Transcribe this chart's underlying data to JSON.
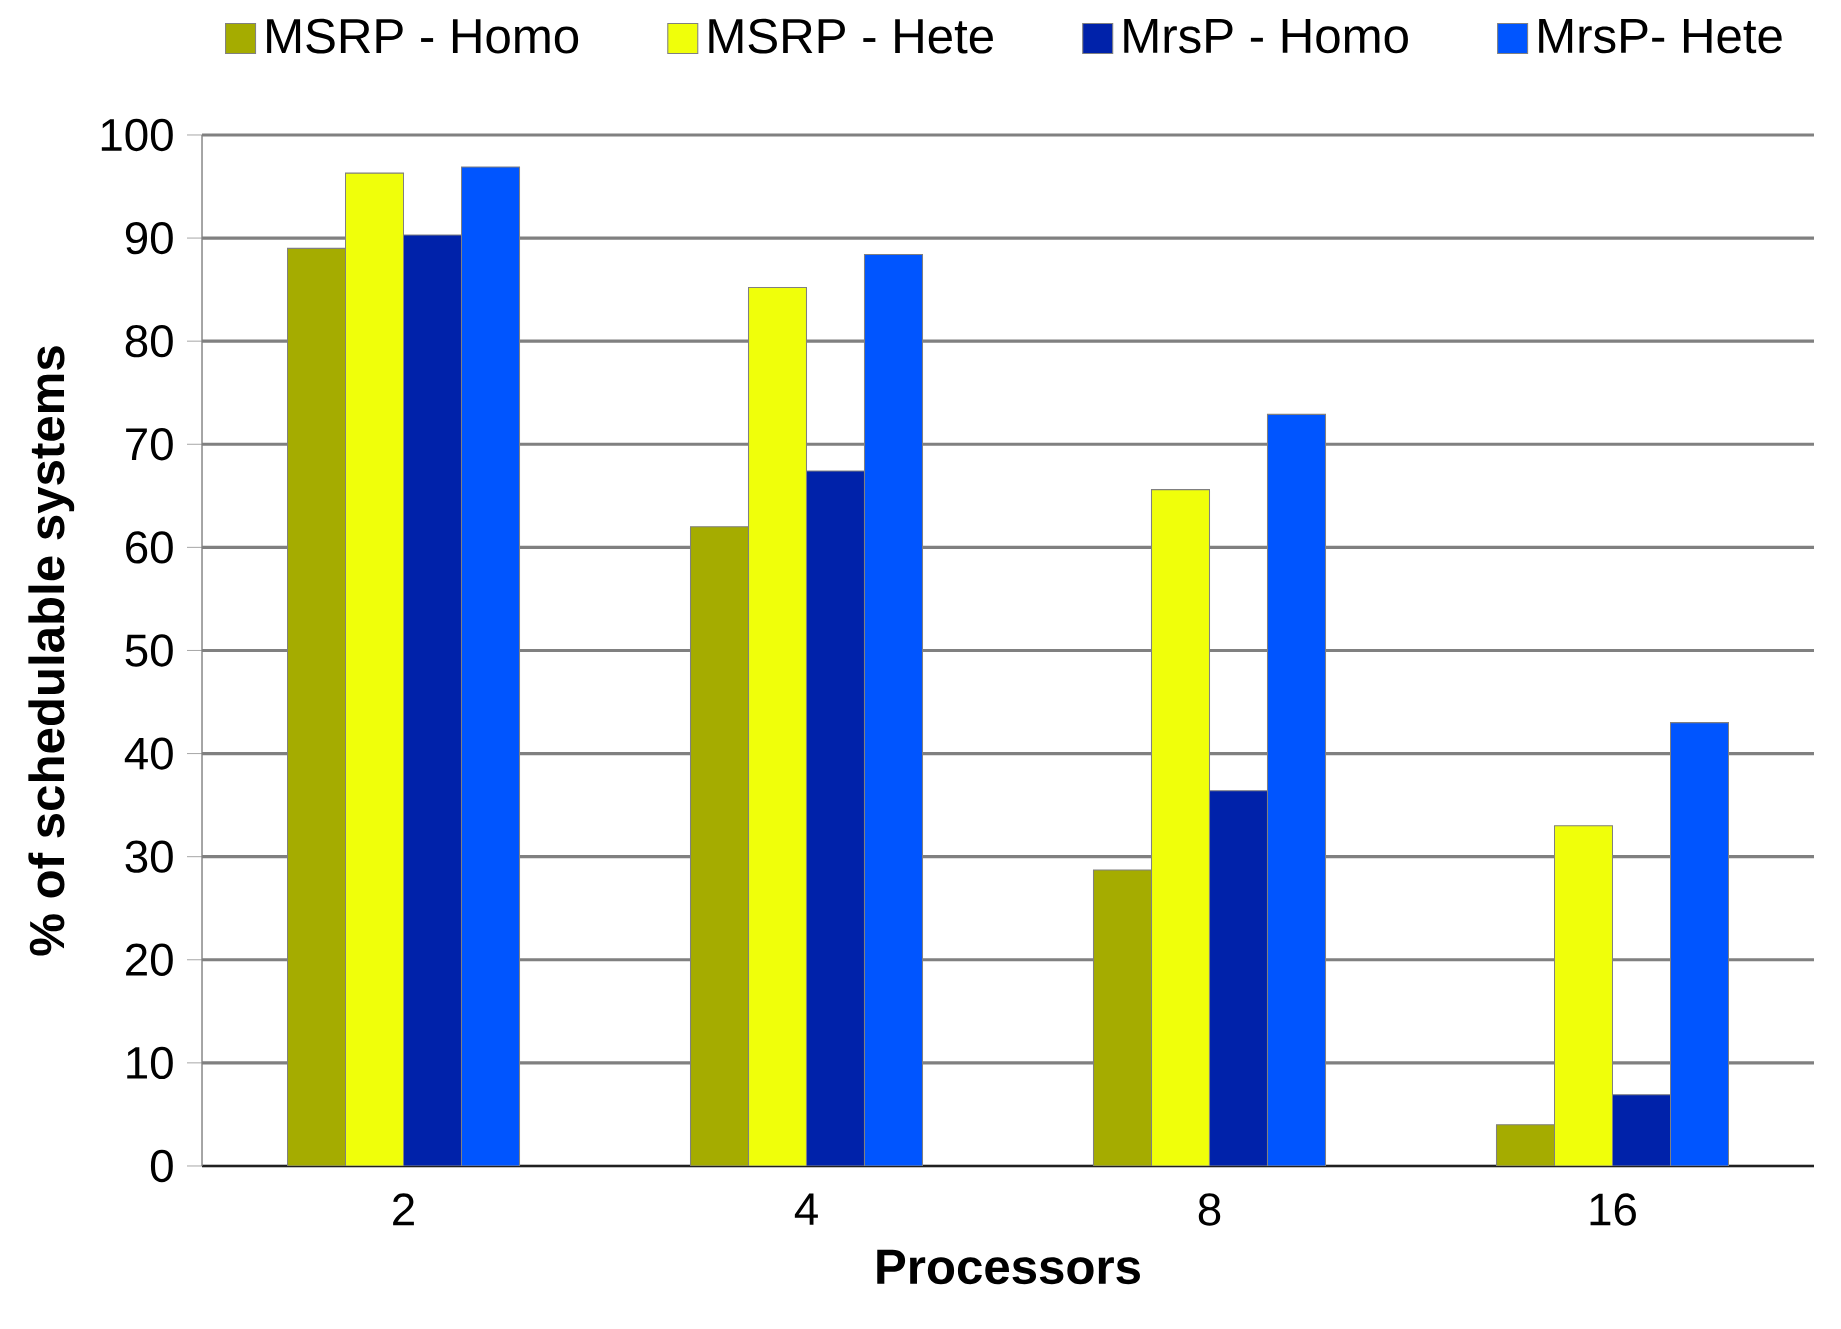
{
  "chart_data": {
    "type": "bar",
    "xlabel": "Processors",
    "ylabel": "% of schedulable systems",
    "categories": [
      "2",
      "4",
      "8",
      "16"
    ],
    "series": [
      {
        "name": "MSRP - Homo",
        "color": "#a5ac00",
        "values": [
          89,
          62,
          28.7,
          4
        ]
      },
      {
        "name": "MSRP - Hete",
        "color": "#f0ff0a",
        "values": [
          96.3,
          85.2,
          65.6,
          33
        ]
      },
      {
        "name": "MrsP - Homo",
        "color": "#0022aa",
        "values": [
          90.3,
          67.4,
          36.4,
          6.9
        ]
      },
      {
        "name": "MrsP- Hete",
        "color": "#0055ff",
        "values": [
          96.9,
          88.4,
          72.9,
          43
        ]
      }
    ],
    "ylim": [
      0,
      100
    ],
    "yticks": [
      0,
      10,
      20,
      30,
      40,
      50,
      60,
      70,
      80,
      90,
      100
    ],
    "grid": "y",
    "legend": "top"
  }
}
